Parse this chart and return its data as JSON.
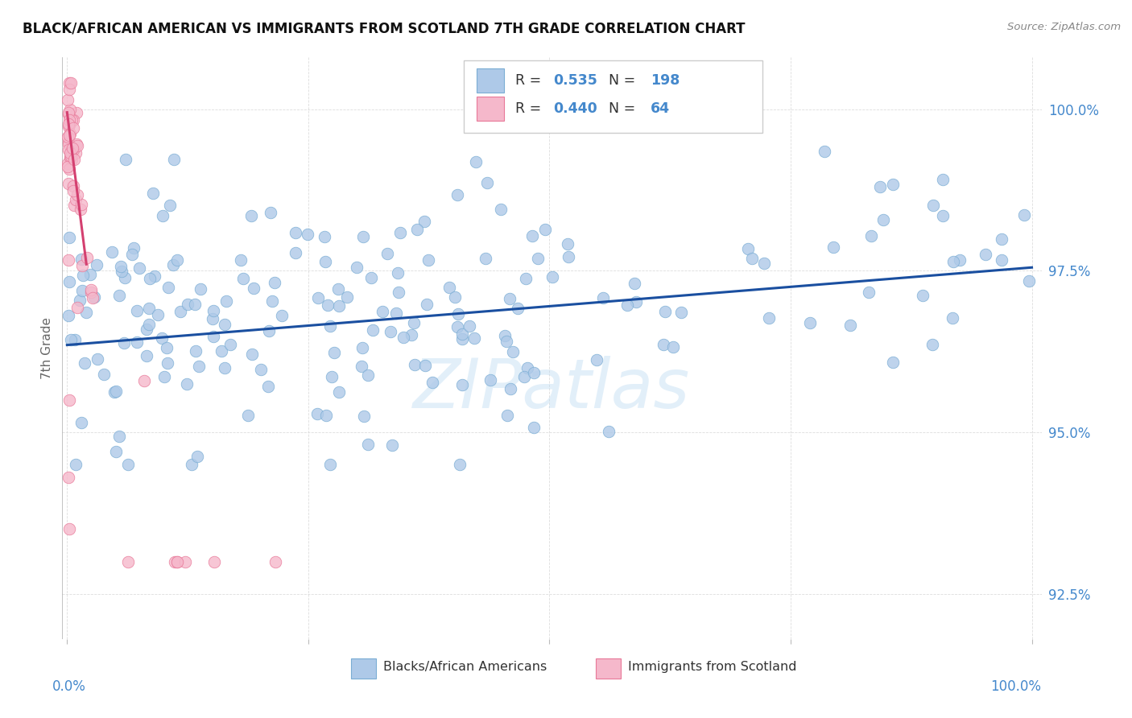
{
  "title": "BLACK/AFRICAN AMERICAN VS IMMIGRANTS FROM SCOTLAND 7TH GRADE CORRELATION CHART",
  "source": "Source: ZipAtlas.com",
  "ylabel": "7th Grade",
  "yticks": [
    0.925,
    0.95,
    0.975,
    1.0
  ],
  "ytick_labels": [
    "92.5%",
    "95.0%",
    "97.5%",
    "100.0%"
  ],
  "blue_color": "#aec9e8",
  "blue_edge_color": "#7aadd4",
  "pink_color": "#f5b8cb",
  "pink_edge_color": "#e87898",
  "line_color": "#1a4fa0",
  "pink_line_color": "#d44070",
  "legend_R1": "0.535",
  "legend_N1": "198",
  "legend_R2": "0.440",
  "legend_N2": "64",
  "label1": "Blacks/African Americans",
  "label2": "Immigrants from Scotland",
  "watermark": "ZIPatlas",
  "axis_label_color": "#4488cc",
  "title_color": "#111111",
  "background_color": "#ffffff",
  "ylim_low": 0.918,
  "ylim_high": 1.008,
  "xlim_low": -0.005,
  "xlim_high": 1.01
}
